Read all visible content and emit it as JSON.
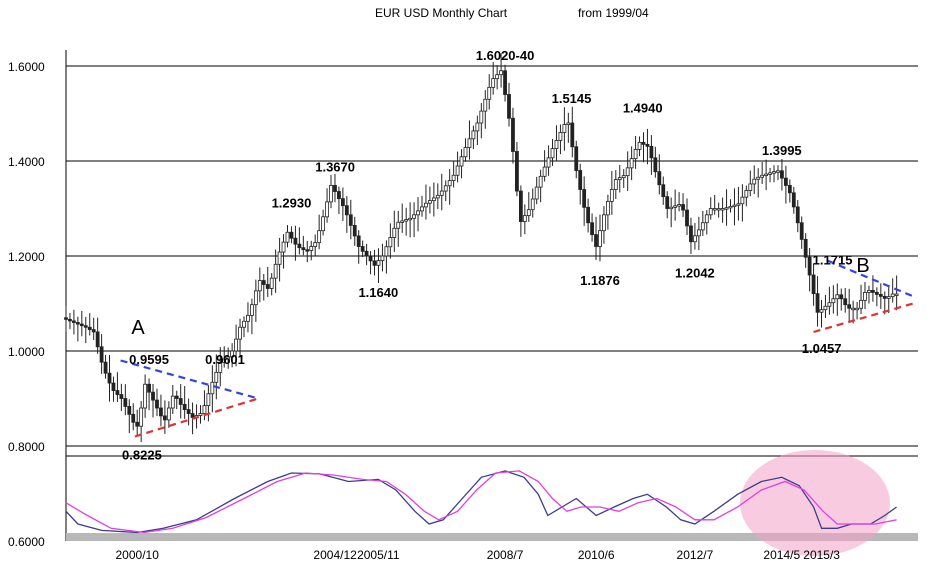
{
  "chart_data": {
    "type": "line",
    "title": "EUR USD Monthly Chart",
    "subtitle": "from 1999/04",
    "series_kind": "candlestick",
    "x_range": [
      1999.25,
      2017.2
    ],
    "price_panel": {
      "ylim": [
        0.8,
        1.6
      ],
      "yticks": [
        "0.8000",
        "1.0000",
        "1.2000",
        "1.4000",
        "1.6000"
      ],
      "grid": true
    },
    "oscillator_panel": {
      "ylim_label": "0.6000",
      "series_colors": [
        "#3c3c8c",
        "#e040e0"
      ]
    },
    "x_tick_labels": [
      {
        "x": 2000.75,
        "label": "2000/10"
      },
      {
        "x": 2004.92,
        "label": "2004/12"
      },
      {
        "x": 2005.83,
        "label": "2005/11"
      },
      {
        "x": 2008.5,
        "label": "2008/7"
      },
      {
        "x": 2010.42,
        "label": "2010/6"
      },
      {
        "x": 2012.5,
        "label": "2012/7"
      },
      {
        "x": 2014.33,
        "label": "2014/5"
      },
      {
        "x": 2015.17,
        "label": "2015/3"
      }
    ],
    "price_path": [
      [
        1999.25,
        1.07
      ],
      [
        1999.5,
        1.06
      ],
      [
        1999.75,
        1.05
      ],
      [
        1999.92,
        1.04
      ],
      [
        2000.1,
        0.97
      ],
      [
        2000.3,
        0.92
      ],
      [
        2000.5,
        0.9
      ],
      [
        2000.75,
        0.85
      ],
      [
        2000.85,
        0.84
      ],
      [
        2001.0,
        0.93
      ],
      [
        2001.2,
        0.89
      ],
      [
        2001.4,
        0.85
      ],
      [
        2001.6,
        0.91
      ],
      [
        2001.8,
        0.88
      ],
      [
        2002.0,
        0.86
      ],
      [
        2002.2,
        0.87
      ],
      [
        2002.4,
        0.93
      ],
      [
        2002.6,
        0.98
      ],
      [
        2002.8,
        0.99
      ],
      [
        2003.0,
        1.05
      ],
      [
        2003.2,
        1.08
      ],
      [
        2003.4,
        1.15
      ],
      [
        2003.6,
        1.13
      ],
      [
        2003.8,
        1.2
      ],
      [
        2004.0,
        1.25
      ],
      [
        2004.2,
        1.22
      ],
      [
        2004.4,
        1.21
      ],
      [
        2004.6,
        1.23
      ],
      [
        2004.8,
        1.3
      ],
      [
        2004.92,
        1.35
      ],
      [
        2005.2,
        1.3
      ],
      [
        2005.5,
        1.22
      ],
      [
        2005.83,
        1.18
      ],
      [
        2006.0,
        1.2
      ],
      [
        2006.3,
        1.27
      ],
      [
        2006.6,
        1.28
      ],
      [
        2006.9,
        1.31
      ],
      [
        2007.2,
        1.33
      ],
      [
        2007.5,
        1.37
      ],
      [
        2007.8,
        1.44
      ],
      [
        2008.0,
        1.48
      ],
      [
        2008.3,
        1.57
      ],
      [
        2008.5,
        1.59
      ],
      [
        2008.7,
        1.47
      ],
      [
        2008.9,
        1.27
      ],
      [
        2009.1,
        1.3
      ],
      [
        2009.3,
        1.36
      ],
      [
        2009.6,
        1.43
      ],
      [
        2009.9,
        1.49
      ],
      [
        2010.1,
        1.37
      ],
      [
        2010.3,
        1.28
      ],
      [
        2010.5,
        1.22
      ],
      [
        2010.7,
        1.3
      ],
      [
        2010.9,
        1.36
      ],
      [
        2011.1,
        1.37
      ],
      [
        2011.4,
        1.44
      ],
      [
        2011.6,
        1.43
      ],
      [
        2011.8,
        1.36
      ],
      [
        2012.0,
        1.3
      ],
      [
        2012.3,
        1.31
      ],
      [
        2012.5,
        1.23
      ],
      [
        2012.7,
        1.26
      ],
      [
        2012.9,
        1.3
      ],
      [
        2013.2,
        1.3
      ],
      [
        2013.5,
        1.31
      ],
      [
        2013.8,
        1.36
      ],
      [
        2014.0,
        1.37
      ],
      [
        2014.33,
        1.38
      ],
      [
        2014.6,
        1.33
      ],
      [
        2014.8,
        1.25
      ],
      [
        2015.0,
        1.16
      ],
      [
        2015.17,
        1.08
      ],
      [
        2015.4,
        1.1
      ],
      [
        2015.6,
        1.12
      ],
      [
        2015.8,
        1.09
      ],
      [
        2016.0,
        1.09
      ],
      [
        2016.2,
        1.13
      ],
      [
        2016.4,
        1.12
      ],
      [
        2016.6,
        1.11
      ],
      [
        2016.75,
        1.12
      ]
    ],
    "oscillator_blue": [
      [
        1999.25,
        0.67
      ],
      [
        1999.5,
        0.64
      ],
      [
        2000.0,
        0.625
      ],
      [
        2000.75,
        0.62
      ],
      [
        2001.3,
        0.63
      ],
      [
        2002.0,
        0.65
      ],
      [
        2002.8,
        0.7
      ],
      [
        2003.5,
        0.74
      ],
      [
        2004.0,
        0.76
      ],
      [
        2004.6,
        0.758
      ],
      [
        2005.2,
        0.74
      ],
      [
        2005.83,
        0.745
      ],
      [
        2006.2,
        0.72
      ],
      [
        2006.6,
        0.67
      ],
      [
        2006.9,
        0.64
      ],
      [
        2007.2,
        0.65
      ],
      [
        2007.6,
        0.7
      ],
      [
        2008.0,
        0.75
      ],
      [
        2008.5,
        0.765
      ],
      [
        2008.9,
        0.75
      ],
      [
        2009.2,
        0.71
      ],
      [
        2009.4,
        0.66
      ],
      [
        2009.7,
        0.68
      ],
      [
        2010.0,
        0.7
      ],
      [
        2010.42,
        0.66
      ],
      [
        2010.8,
        0.68
      ],
      [
        2011.2,
        0.7
      ],
      [
        2011.5,
        0.71
      ],
      [
        2011.9,
        0.68
      ],
      [
        2012.2,
        0.65
      ],
      [
        2012.5,
        0.64
      ],
      [
        2012.9,
        0.67
      ],
      [
        2013.4,
        0.71
      ],
      [
        2013.9,
        0.74
      ],
      [
        2014.33,
        0.75
      ],
      [
        2014.7,
        0.73
      ],
      [
        2015.0,
        0.68
      ],
      [
        2015.17,
        0.63
      ],
      [
        2015.5,
        0.63
      ],
      [
        2015.8,
        0.64
      ],
      [
        2016.2,
        0.64
      ],
      [
        2016.5,
        0.66
      ],
      [
        2016.75,
        0.68
      ]
    ],
    "oscillator_magenta": [
      [
        1999.25,
        0.69
      ],
      [
        1999.7,
        0.66
      ],
      [
        2000.2,
        0.63
      ],
      [
        2000.9,
        0.62
      ],
      [
        2001.5,
        0.63
      ],
      [
        2002.2,
        0.655
      ],
      [
        2003.0,
        0.7
      ],
      [
        2003.7,
        0.74
      ],
      [
        2004.3,
        0.76
      ],
      [
        2004.9,
        0.755
      ],
      [
        2005.5,
        0.745
      ],
      [
        2006.0,
        0.74
      ],
      [
        2006.4,
        0.71
      ],
      [
        2006.8,
        0.67
      ],
      [
        2007.1,
        0.65
      ],
      [
        2007.5,
        0.67
      ],
      [
        2007.9,
        0.72
      ],
      [
        2008.3,
        0.76
      ],
      [
        2008.8,
        0.765
      ],
      [
        2009.2,
        0.74
      ],
      [
        2009.5,
        0.7
      ],
      [
        2009.8,
        0.67
      ],
      [
        2010.1,
        0.68
      ],
      [
        2010.5,
        0.68
      ],
      [
        2010.9,
        0.67
      ],
      [
        2011.3,
        0.69
      ],
      [
        2011.7,
        0.7
      ],
      [
        2012.1,
        0.68
      ],
      [
        2012.5,
        0.65
      ],
      [
        2012.9,
        0.65
      ],
      [
        2013.4,
        0.68
      ],
      [
        2013.9,
        0.72
      ],
      [
        2014.4,
        0.74
      ],
      [
        2014.8,
        0.72
      ],
      [
        2015.2,
        0.67
      ],
      [
        2015.5,
        0.64
      ],
      [
        2015.9,
        0.64
      ],
      [
        2016.3,
        0.64
      ],
      [
        2016.75,
        0.65
      ]
    ],
    "annotations": [
      {
        "label": "1.6020-40",
        "x": 2008.5,
        "y": 1.6
      },
      {
        "label": "1.5145",
        "x": 2009.9,
        "y": 1.51
      },
      {
        "label": "1.4940",
        "x": 2011.4,
        "y": 1.49
      },
      {
        "label": "1.3995",
        "x": 2014.33,
        "y": 1.4
      },
      {
        "label": "1.3670",
        "x": 2004.92,
        "y": 1.365
      },
      {
        "label": "1.2930",
        "x": 2004.0,
        "y": 1.29
      },
      {
        "label": "1.1640",
        "x": 2005.83,
        "y": 1.164
      },
      {
        "label": "1.1876",
        "x": 2010.5,
        "y": 1.19
      },
      {
        "label": "1.2042",
        "x": 2012.5,
        "y": 1.205
      },
      {
        "label": "1.1715",
        "x": 2015.4,
        "y": 1.17
      },
      {
        "label": "1.0457",
        "x": 2015.17,
        "y": 1.046
      },
      {
        "label": "0.9595",
        "x": 2001.0,
        "y": 0.96
      },
      {
        "label": "0.9601",
        "x": 2002.6,
        "y": 0.96
      },
      {
        "label": "0.8225",
        "x": 2000.85,
        "y": 0.822
      }
    ],
    "pattern_labels": [
      "A",
      "B"
    ],
    "trend_lines": [
      {
        "color": "#3344dd",
        "style": "dashed",
        "from": [
          2000.4,
          0.98
        ],
        "to": [
          2003.3,
          0.9
        ]
      },
      {
        "color": "#dd3333",
        "style": "dashed",
        "from": [
          2000.7,
          0.82
        ],
        "to": [
          2003.3,
          0.9
        ]
      },
      {
        "color": "#3344dd",
        "style": "dashed",
        "from": [
          2015.3,
          1.19
        ],
        "to": [
          2017.1,
          1.115
        ]
      },
      {
        "color": "#dd3333",
        "style": "dashed",
        "from": [
          2015.0,
          1.04
        ],
        "to": [
          2017.1,
          1.1
        ]
      }
    ],
    "highlight_color": "#f4a0c8"
  }
}
